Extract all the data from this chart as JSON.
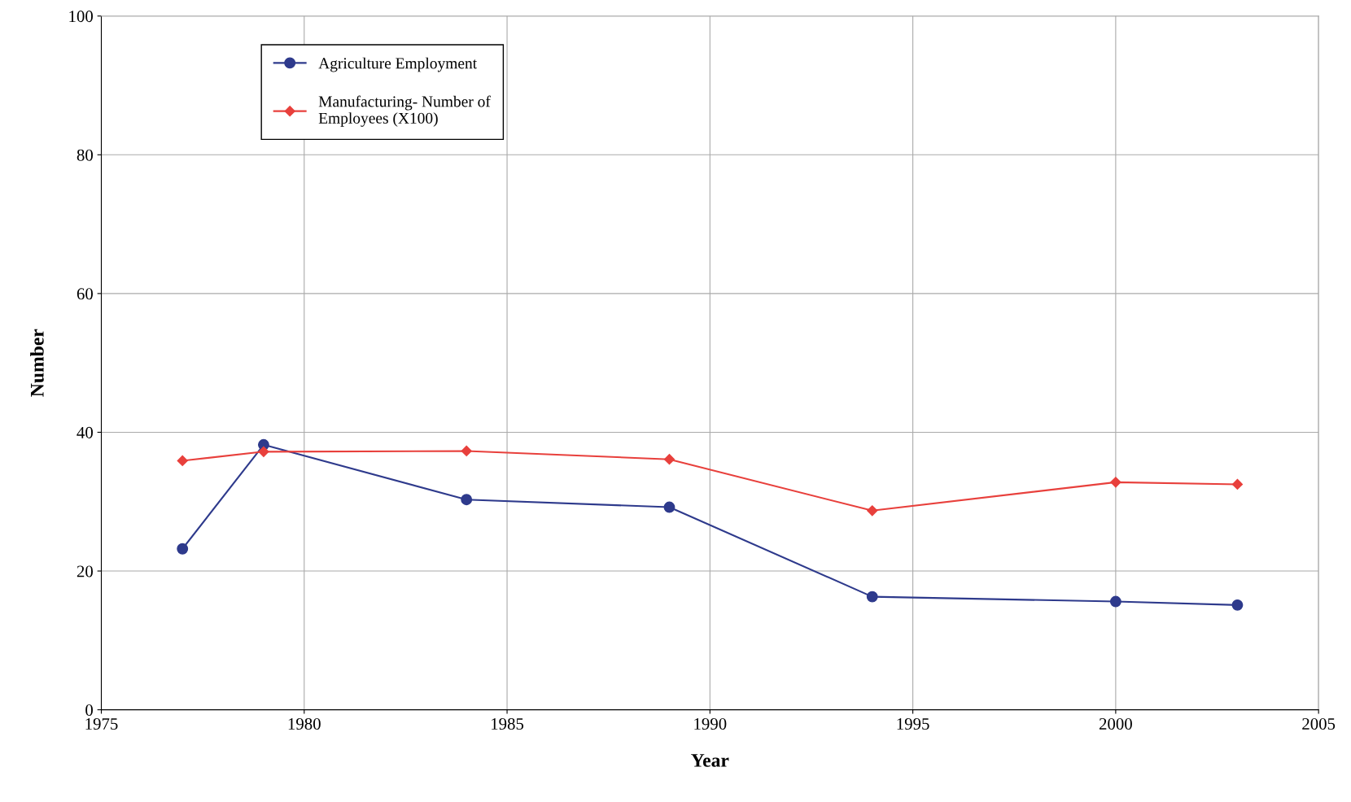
{
  "chart_data": {
    "type": "line",
    "xlabel": "Year",
    "ylabel": "Number",
    "x": [
      1977,
      1979,
      1984,
      1989,
      1994,
      2000,
      2003
    ],
    "series": [
      {
        "name": "Agriculture Employment",
        "color": "#2e3a8c",
        "marker": "circle",
        "values": [
          23.2,
          38.2,
          30.3,
          29.2,
          16.3,
          15.6,
          15.1
        ]
      },
      {
        "name": "Manufacturing- Number of\nEmployees (X100)",
        "color": "#e8403c",
        "marker": "diamond",
        "values": [
          35.9,
          37.2,
          37.3,
          36.1,
          28.7,
          32.8,
          32.5
        ]
      }
    ],
    "xlim": [
      1975,
      2005
    ],
    "xticks": [
      1975,
      1980,
      1985,
      1990,
      1995,
      2000,
      2005
    ],
    "ylim": [
      0,
      100
    ],
    "yticks": [
      0,
      20,
      40,
      60,
      80,
      100
    ],
    "grid": true,
    "legend": "top left",
    "line_style": "solid"
  }
}
